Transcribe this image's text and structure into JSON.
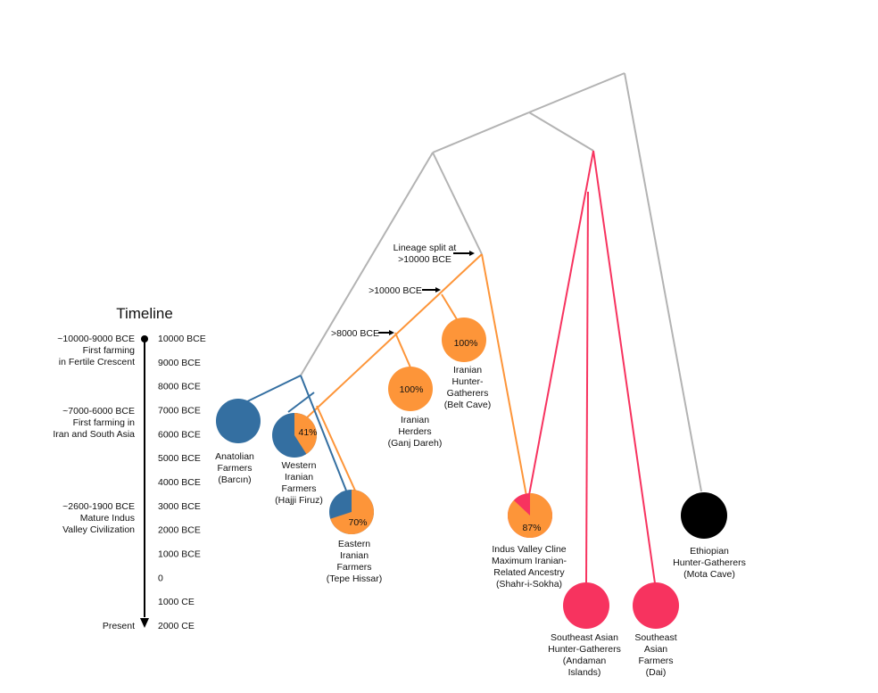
{
  "colors": {
    "gray": "#b3b3b3",
    "blue": "#346fa1",
    "orange": "#fd9539",
    "pink": "#f7335f",
    "black": "#000000"
  },
  "timeline": {
    "title": "Timeline",
    "ticks": [
      "10000 BCE",
      "9000 BCE",
      "8000 BCE",
      "7000 BCE",
      "6000 BCE",
      "5000 BCE",
      "4000 BCE",
      "3000 BCE",
      "2000 BCE",
      "1000 BCE",
      "0",
      "1000 CE",
      "2000 CE"
    ],
    "events": [
      {
        "lines": [
          "~10000-9000 BCE",
          "First farming",
          "in Fertile Crescent"
        ]
      },
      {
        "lines": [
          "~7000-6000 BCE",
          "First farming in",
          "Iran and South Asia"
        ]
      },
      {
        "lines": [
          "~2600-1900 BCE",
          "Mature Indus",
          "Valley Civilization"
        ]
      },
      {
        "lines": [
          "Present"
        ]
      }
    ]
  },
  "split_labels": [
    {
      "lines": [
        "Lineage split at",
        ">10000 BCE"
      ]
    },
    {
      "lines": [
        ">10000 BCE"
      ]
    },
    {
      "lines": [
        ">8000 BCE"
      ]
    }
  ],
  "populations": [
    {
      "id": "anatolian",
      "lines": [
        "Anatolian",
        "Farmers",
        "(Barcın)"
      ],
      "pct": "",
      "fill": "blue"
    },
    {
      "id": "western-iranian",
      "lines": [
        "Western",
        "Iranian",
        "Farmers",
        "(Hajji Firuz)"
      ],
      "pct": "41%",
      "iranian_fraction": 0.41,
      "fill": "blue"
    },
    {
      "id": "eastern-iranian",
      "lines": [
        "Eastern",
        "Iranian",
        "Farmers",
        "(Tepe Hissar)"
      ],
      "pct": "70%",
      "iranian_fraction": 0.7,
      "fill": "blue"
    },
    {
      "id": "iranian-herders",
      "lines": [
        "Iranian",
        "Herders",
        "(Ganj Dareh)"
      ],
      "pct": "100%",
      "iranian_fraction": 1.0,
      "fill": "orange"
    },
    {
      "id": "iranian-hg",
      "lines": [
        "Iranian",
        "Hunter-",
        "Gatherers",
        "(Belt Cave)"
      ],
      "pct": "100%",
      "iranian_fraction": 1.0,
      "fill": "orange"
    },
    {
      "id": "indus-valley",
      "lines": [
        "Indus Valley Cline",
        "Maximum Iranian-",
        "Related Ancestry",
        "(Shahr-i-Sokha)"
      ],
      "pct": "87%",
      "iranian_fraction": 0.87,
      "fill": "pink"
    },
    {
      "id": "se-asian-hg",
      "lines": [
        "Southeast Asian",
        "Hunter-Gatherers",
        "(Andaman",
        "Islands)"
      ],
      "pct": "",
      "fill": "pink"
    },
    {
      "id": "se-asian-farmers",
      "lines": [
        "Southeast",
        "Asian",
        "Farmers",
        "(Dai)"
      ],
      "pct": "",
      "fill": "pink"
    },
    {
      "id": "ethiopian",
      "lines": [
        "Ethiopian",
        "Hunter-Gatherers",
        "(Mota Cave)"
      ],
      "pct": "",
      "fill": "black"
    }
  ]
}
